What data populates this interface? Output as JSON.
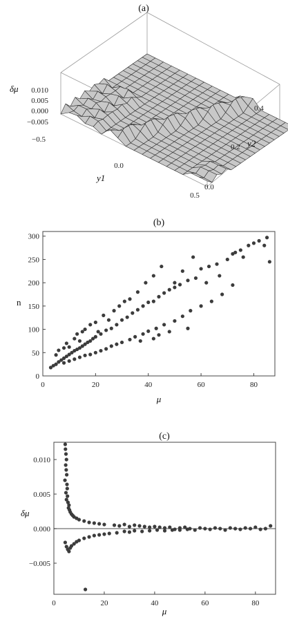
{
  "chart_data": [
    {
      "id": "a",
      "type": "surface3d",
      "title": "(a)",
      "xlabel": "y1",
      "ylabel": "y2",
      "zlabel": "δμ",
      "x_ticks": [
        "−0.5",
        "0.0",
        "0.5"
      ],
      "y_ticks": [
        "0.0",
        "0.2",
        "0.4"
      ],
      "z_ticks": [
        "0.010",
        "0.005",
        "0.000",
        "−0.005"
      ],
      "xlim": [
        -0.5,
        0.5
      ],
      "ylim": [
        0.0,
        0.5
      ],
      "zlim": [
        -0.007,
        0.012
      ],
      "colors": {
        "surface": "#c8c8c8",
        "mesh": "#2e2e2e",
        "box": "#9a9a9a"
      }
    },
    {
      "id": "b",
      "type": "scatter",
      "title": "(b)",
      "xlabel": "μ",
      "ylabel": "n",
      "xlim": [
        0,
        88
      ],
      "ylim": [
        0,
        310
      ],
      "x_ticks": [
        0,
        20,
        40,
        60,
        80
      ],
      "y_ticks": [
        0,
        50,
        100,
        150,
        200,
        250,
        300
      ],
      "grid": false,
      "marker_color": "#3c3c3c",
      "points": [
        [
          3,
          18
        ],
        [
          4,
          22
        ],
        [
          5,
          25
        ],
        [
          6,
          30
        ],
        [
          7,
          34
        ],
        [
          8,
          38
        ],
        [
          9,
          42
        ],
        [
          10,
          46
        ],
        [
          11,
          50
        ],
        [
          12,
          54
        ],
        [
          13,
          57
        ],
        [
          14,
          60
        ],
        [
          15,
          64
        ],
        [
          16,
          68
        ],
        [
          17,
          72
        ],
        [
          18,
          75
        ],
        [
          19,
          80
        ],
        [
          20,
          84
        ],
        [
          22,
          90
        ],
        [
          24,
          98
        ],
        [
          26,
          102
        ],
        [
          28,
          110
        ],
        [
          30,
          120
        ],
        [
          32,
          126
        ],
        [
          34,
          135
        ],
        [
          36,
          142
        ],
        [
          38,
          150
        ],
        [
          40,
          158
        ],
        [
          42,
          160
        ],
        [
          44,
          170
        ],
        [
          46,
          178
        ],
        [
          48,
          185
        ],
        [
          50,
          190
        ],
        [
          52,
          196
        ],
        [
          55,
          205
        ],
        [
          58,
          210
        ],
        [
          60,
          230
        ],
        [
          63,
          235
        ],
        [
          66,
          240
        ],
        [
          70,
          250
        ],
        [
          72,
          262
        ],
        [
          75,
          270
        ],
        [
          78,
          280
        ],
        [
          80,
          285
        ],
        [
          82,
          290
        ],
        [
          85,
          297
        ],
        [
          5,
          45
        ],
        [
          6,
          55
        ],
        [
          8,
          60
        ],
        [
          9,
          70
        ],
        [
          10,
          62
        ],
        [
          12,
          80
        ],
        [
          13,
          90
        ],
        [
          14,
          75
        ],
        [
          15,
          95
        ],
        [
          16,
          100
        ],
        [
          18,
          110
        ],
        [
          20,
          115
        ],
        [
          21,
          95
        ],
        [
          23,
          130
        ],
        [
          25,
          120
        ],
        [
          27,
          140
        ],
        [
          29,
          150
        ],
        [
          31,
          160
        ],
        [
          33,
          165
        ],
        [
          36,
          180
        ],
        [
          39,
          200
        ],
        [
          42,
          215
        ],
        [
          45,
          235
        ],
        [
          50,
          200
        ],
        [
          53,
          225
        ],
        [
          57,
          255
        ],
        [
          62,
          200
        ],
        [
          67,
          215
        ],
        [
          73,
          265
        ],
        [
          76,
          255
        ],
        [
          84,
          280
        ],
        [
          86,
          245
        ],
        [
          8,
          28
        ],
        [
          10,
          32
        ],
        [
          12,
          36
        ],
        [
          14,
          40
        ],
        [
          16,
          44
        ],
        [
          18,
          46
        ],
        [
          20,
          50
        ],
        [
          22,
          54
        ],
        [
          24,
          58
        ],
        [
          26,
          64
        ],
        [
          28,
          68
        ],
        [
          30,
          72
        ],
        [
          33,
          78
        ],
        [
          35,
          84
        ],
        [
          38,
          90
        ],
        [
          40,
          96
        ],
        [
          43,
          102
        ],
        [
          46,
          110
        ],
        [
          50,
          118
        ],
        [
          53,
          128
        ],
        [
          56,
          140
        ],
        [
          60,
          150
        ],
        [
          64,
          160
        ],
        [
          68,
          175
        ],
        [
          72,
          195
        ],
        [
          55,
          102
        ],
        [
          44,
          88
        ],
        [
          48,
          95
        ],
        [
          37,
          75
        ],
        [
          42,
          80
        ]
      ]
    },
    {
      "id": "c",
      "type": "scatter",
      "title": "(c)",
      "xlabel": "μ",
      "ylabel": "δμ",
      "xlim": [
        0,
        88
      ],
      "ylim": [
        -0.0095,
        0.0125
      ],
      "x_ticks": [
        0,
        20,
        40,
        60,
        80
      ],
      "y_ticks": [
        "0.010",
        "0.005",
        "0.000",
        "−0.005"
      ],
      "y_tick_values": [
        0.01,
        0.005,
        0.0,
        -0.005
      ],
      "grid": false,
      "marker_color": "#3c3c3c",
      "points": [
        [
          4.5,
          0.0122
        ],
        [
          4.6,
          0.0115
        ],
        [
          4.8,
          0.0108
        ],
        [
          5.0,
          0.01
        ],
        [
          4.7,
          0.0092
        ],
        [
          4.9,
          0.0085
        ],
        [
          5.1,
          0.0078
        ],
        [
          4.4,
          0.007
        ],
        [
          5.2,
          0.0064
        ],
        [
          5.3,
          0.0058
        ],
        [
          4.8,
          0.0052
        ],
        [
          5.4,
          0.0047
        ],
        [
          5.0,
          0.0042
        ],
        [
          5.6,
          0.0038
        ],
        [
          6.0,
          0.0034
        ],
        [
          5.8,
          0.003
        ],
        [
          6.2,
          0.0027
        ],
        [
          6.5,
          0.0024
        ],
        [
          7.0,
          0.0021
        ],
        [
          7.5,
          0.0019
        ],
        [
          8.0,
          0.0017
        ],
        [
          9.0,
          0.0015
        ],
        [
          10,
          0.0013
        ],
        [
          12,
          0.0011
        ],
        [
          14,
          0.0009
        ],
        [
          16,
          0.0008
        ],
        [
          18,
          0.0007
        ],
        [
          20,
          0.0006
        ],
        [
          4.5,
          -0.002
        ],
        [
          5.0,
          -0.0026
        ],
        [
          5.5,
          -0.003
        ],
        [
          6.0,
          -0.0033
        ],
        [
          6.5,
          -0.0028
        ],
        [
          7.0,
          -0.0025
        ],
        [
          8.0,
          -0.0022
        ],
        [
          9.0,
          -0.0019
        ],
        [
          10,
          -0.0017
        ],
        [
          12,
          -0.0014
        ],
        [
          14,
          -0.0012
        ],
        [
          16,
          -0.001
        ],
        [
          18,
          -0.0009
        ],
        [
          20,
          -0.0008
        ],
        [
          22,
          -0.0007
        ],
        [
          25,
          -0.0006
        ],
        [
          24,
          0.0005
        ],
        [
          26,
          0.0004
        ],
        [
          28,
          0.0006
        ],
        [
          30,
          0.0003
        ],
        [
          32,
          0.0005
        ],
        [
          34,
          0.0004
        ],
        [
          36,
          0.0003
        ],
        [
          38,
          0.0002
        ],
        [
          40,
          0.0003
        ],
        [
          42,
          0.0002
        ],
        [
          44,
          0.0001
        ],
        [
          46,
          0.0002
        ],
        [
          48,
          -0.0001
        ],
        [
          50,
          0.0001
        ],
        [
          52,
          0.0002
        ],
        [
          54,
          0.0
        ],
        [
          56,
          -0.0002
        ],
        [
          58,
          0.0001
        ],
        [
          60,
          0.0
        ],
        [
          62,
          -0.0001
        ],
        [
          64,
          0.0001
        ],
        [
          66,
          0.0
        ],
        [
          68,
          -0.0002
        ],
        [
          70,
          0.0001
        ],
        [
          72,
          0.0
        ],
        [
          74,
          -0.0001
        ],
        [
          76,
          0.0001
        ],
        [
          78,
          0.0
        ],
        [
          80,
          0.0002
        ],
        [
          82,
          -0.0001
        ],
        [
          84,
          0.0
        ],
        [
          86,
          0.0004
        ],
        [
          28,
          -0.0004
        ],
        [
          30,
          -0.0005
        ],
        [
          32,
          -0.0003
        ],
        [
          35,
          -0.0004
        ],
        [
          38,
          -0.0003
        ],
        [
          41,
          -0.0002
        ],
        [
          44,
          -0.0003
        ],
        [
          47,
          -0.0002
        ],
        [
          50,
          -0.0002
        ],
        [
          53,
          -0.0001
        ],
        [
          12.5,
          -0.0088
        ]
      ]
    }
  ]
}
